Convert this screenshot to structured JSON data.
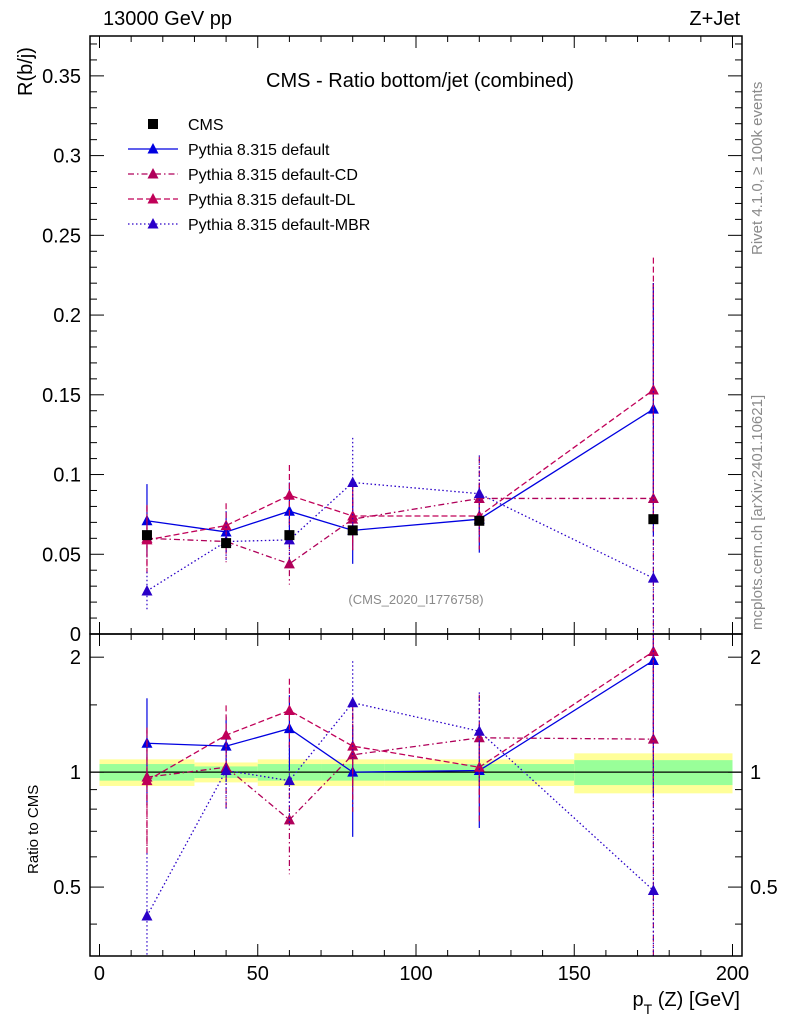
{
  "header": {
    "left": "13000 GeV pp",
    "right": "Z+Jet"
  },
  "side": {
    "rivet": "Rivet 4.1.0, ≥ 100k events",
    "mcplots": "mcplots.cern.ch [arXiv:2401.10621]"
  },
  "chart_data": {
    "type": "line",
    "title": "CMS - Ratio bottom/jet (combined)",
    "analysis_id": "(CMS_2020_I1776758)",
    "ylabel": "R(b/j)",
    "xlabel_main": "p",
    "xlabel_sub": "T",
    "xlabel_rest": " (Z) [GeV]",
    "ratio_ylabel": "Ratio to CMS",
    "xlim": [
      -3,
      203
    ],
    "ylim": [
      0,
      0.375
    ],
    "ratio_ylim": [
      0.33,
      2.3
    ],
    "x_ticks": [
      0,
      50,
      100,
      150,
      200
    ],
    "x_tick_labels": [
      "0",
      "50",
      "100",
      "150",
      "200"
    ],
    "y_ticks": [
      0,
      0.05,
      0.1,
      0.15,
      0.2,
      0.25,
      0.3,
      0.35
    ],
    "y_tick_labels": [
      "0",
      "0.05",
      "0.1",
      "0.15",
      "0.2",
      "0.25",
      "0.3",
      "0.35"
    ],
    "ratio_ticks": [
      0.5,
      1,
      2
    ],
    "ratio_tick_labels": [
      "0.5",
      "1",
      "2"
    ],
    "x": [
      15,
      40,
      60,
      80,
      120,
      175
    ],
    "data": {
      "name": "CMS",
      "color": "#000000",
      "values": [
        0.062,
        0.057,
        0.062,
        0.065,
        0.071,
        0.072
      ],
      "bins": [
        [
          0,
          30
        ],
        [
          30,
          50
        ],
        [
          50,
          70
        ],
        [
          70,
          90
        ],
        [
          90,
          150
        ],
        [
          150,
          200
        ]
      ],
      "band_inner": [
        0.05,
        0.035,
        0.05,
        0.05,
        0.05,
        0.075
      ],
      "band_outer": [
        0.08,
        0.06,
        0.08,
        0.08,
        0.08,
        0.12
      ]
    },
    "series": [
      {
        "name": "Pythia 8.315 default",
        "color": "#0000e0",
        "dash": "solid",
        "values": [
          0.071,
          0.064,
          0.077,
          0.065,
          0.072,
          0.141
        ],
        "errors": [
          0.023,
          0.013,
          0.018,
          0.021,
          0.021,
          0.079
        ],
        "ratio": [
          1.19,
          1.17,
          1.3,
          1.0,
          1.01,
          1.96
        ]
      },
      {
        "name": "Pythia 8.315 default-CD",
        "color": "#b0005a",
        "dash": "dashdot",
        "values": [
          0.06,
          0.058,
          0.044,
          0.072,
          0.085,
          0.085
        ],
        "errors": [
          0.021,
          0.013,
          0.013,
          0.021,
          0.026,
          0.135
        ],
        "ratio": [
          0.97,
          1.03,
          0.75,
          1.11,
          1.23,
          1.22
        ]
      },
      {
        "name": "Pythia 8.315 default-DL",
        "color": "#c00058",
        "dash": "dashed",
        "values": [
          0.059,
          0.068,
          0.087,
          0.074,
          0.074,
          0.153
        ],
        "errors": [
          0.021,
          0.014,
          0.019,
          0.021,
          0.021,
          0.083
        ],
        "ratio": [
          0.95,
          1.25,
          1.45,
          1.17,
          1.03,
          2.07
        ]
      },
      {
        "name": "Pythia 8.315 default-MBR",
        "color": "#2a00c8",
        "dash": "dotted",
        "values": [
          0.027,
          0.058,
          0.059,
          0.095,
          0.088,
          0.035
        ],
        "errors": [
          0.012,
          0.012,
          0.014,
          0.028,
          0.024,
          0.185
        ],
        "ratio": [
          0.42,
          1.01,
          0.95,
          1.52,
          1.28,
          0.49
        ]
      }
    ]
  }
}
